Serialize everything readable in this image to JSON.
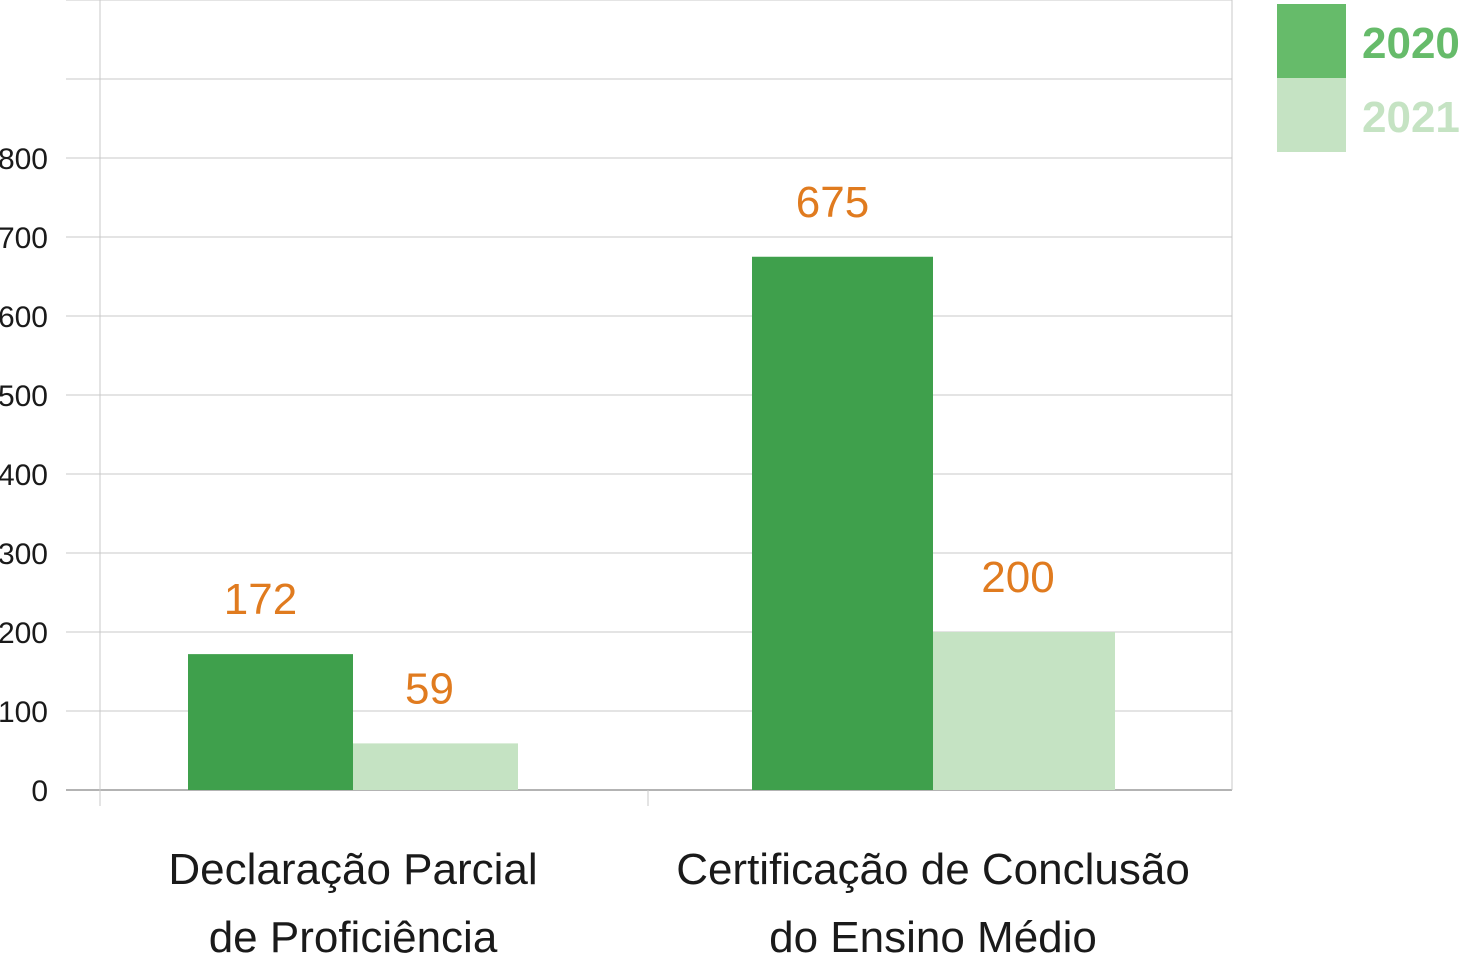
{
  "chart_data": {
    "type": "bar",
    "categories": [
      [
        "Declaração Parcial",
        "de Proficiência"
      ],
      [
        "Certificação de Conclusão",
        "do Ensino Médio"
      ]
    ],
    "series": [
      {
        "name": "2020",
        "values": [
          172,
          675
        ],
        "color": "#3fa04c"
      },
      {
        "name": "2021",
        "values": [
          59,
          200
        ],
        "color": "#c5e3c3"
      }
    ],
    "value_labels": [
      [
        "172",
        "675"
      ],
      [
        "59",
        "200"
      ]
    ],
    "value_label_color": "#e07b1f",
    "yticks": [
      0,
      100,
      200,
      300,
      400,
      500,
      600,
      700,
      800
    ],
    "ylim": [
      0,
      1000
    ],
    "grid": true,
    "legend_position": "top-right",
    "title": "",
    "xlabel": "",
    "ylabel": ""
  }
}
